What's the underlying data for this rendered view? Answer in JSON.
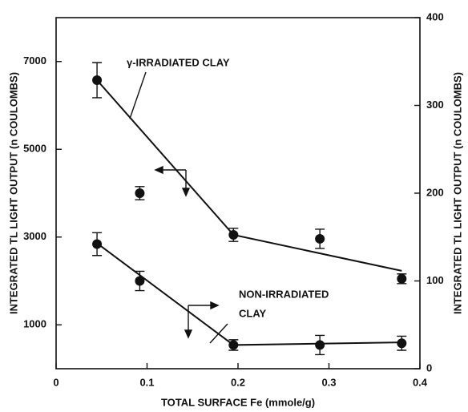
{
  "chart_data": {
    "type": "scatter",
    "x_label": "TOTAL SURFACE Fe (mmole/g)",
    "y_label": "INTEGRATED TL LIGHT OUTPUT (n COULOMBS)",
    "y2_label": "INTEGRATED TL LIGHT OUTPUT (n COULOMBS)",
    "x": [
      0.045,
      0.092,
      0.195,
      0.29,
      0.38
    ],
    "xlim": [
      0,
      0.4
    ],
    "xticks": [
      0,
      0.1,
      0.2,
      0.3,
      0.4
    ],
    "ylim": [
      0,
      8000
    ],
    "yticks": [
      1000,
      3000,
      5000,
      7000
    ],
    "y2lim": [
      0,
      400
    ],
    "y2ticks": [
      0,
      100,
      200,
      300,
      400
    ],
    "series": [
      {
        "annotation": "γ-IRRADIATED CLAY",
        "color": "#111111",
        "values": [
          6575,
          4000,
          3050,
          2960,
          2050
        ],
        "errors": [
          400,
          150,
          150,
          220,
          110
        ],
        "fit": {
          "x": [
            0.045,
            0.195,
            0.38
          ],
          "values": [
            6575,
            3050,
            2230
          ]
        }
      },
      {
        "annotation": [
          "NON-IRRADIATED",
          "CLAY"
        ],
        "color": "#111111",
        "axis": "y2",
        "values": [
          142,
          100,
          27,
          27,
          29
        ],
        "errors": [
          13,
          11,
          6,
          11,
          8
        ],
        "fit": {
          "x": [
            0.045,
            0.195,
            0.38
          ],
          "values": [
            143,
            27,
            30
          ]
        }
      }
    ]
  }
}
